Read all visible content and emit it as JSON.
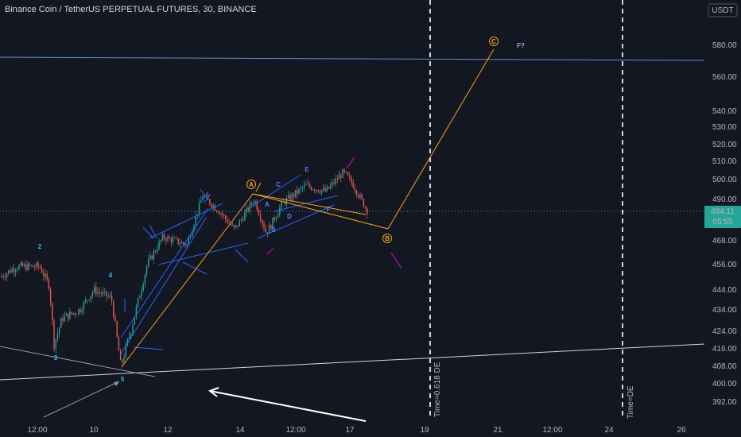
{
  "header": {
    "title": "Binance Coin / TetherUS PERPETUAL FUTURES, 30, BINANCE"
  },
  "price_scale": {
    "currency": "USDT",
    "last_price": "484.11",
    "countdown": "05:55"
  },
  "colors": {
    "background": "#131722",
    "up": "#26a69a",
    "down": "#ef5350",
    "channel": "#2962ff",
    "wave": "#f7a21b",
    "cyan": "#22c5f0",
    "magenta": "#c000c0",
    "hline": "#5d8fd4",
    "white": "#d1d4dc"
  },
  "chart_data": {
    "type": "candlestick",
    "symbol": "BNBUSDT.P",
    "timeframe": "30",
    "last_price": 484.11,
    "y_ticks": [
      580,
      560,
      540,
      530,
      520,
      510,
      500,
      490,
      468,
      456,
      444,
      434,
      424,
      416,
      408,
      400,
      392
    ],
    "x_ticks": [
      "12:00",
      "10",
      "12",
      "14",
      "12:00",
      "17",
      "19",
      "21",
      "12:00",
      "24",
      "26"
    ],
    "horizontal_line": 574,
    "wave_labels": [
      {
        "label": "2",
        "color": "cyan"
      },
      {
        "label": "4",
        "color": "cyan"
      },
      {
        "label": "3",
        "color": "cyan"
      },
      {
        "label": "5",
        "color": "cyan"
      },
      {
        "label": "A",
        "color": "blue"
      },
      {
        "label": "B",
        "color": "blue"
      },
      {
        "label": "C",
        "color": "blue"
      },
      {
        "label": "D",
        "color": "blue"
      },
      {
        "label": "E",
        "color": "blue"
      },
      {
        "label": "F",
        "color": "blue"
      },
      {
        "label": "F?",
        "color": "white"
      }
    ],
    "circled_labels": [
      "A",
      "B",
      "C"
    ],
    "projection_path": [
      {
        "time": "Dec 10 ~12:00",
        "price": 408
      },
      {
        "time": "Dec 14 ~12:00",
        "price": 492
      },
      {
        "time": "Dec 18 ~04:00",
        "price": 474
      },
      {
        "time": "Dec 20 ~20:00",
        "price": 576
      }
    ],
    "time_markers": [
      "Time=0.618 DE",
      "Time=DE"
    ]
  }
}
